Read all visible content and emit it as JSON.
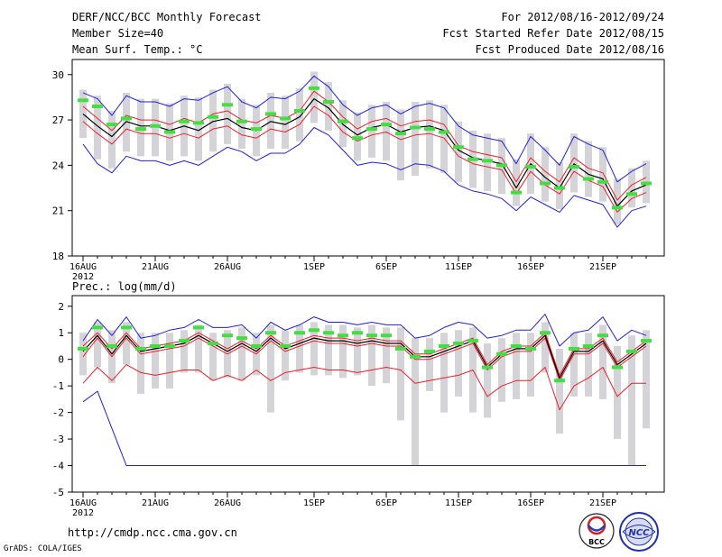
{
  "header": {
    "title": "DERF/NCC/BCC Monthly Forecast",
    "member_size": "Member Size=40",
    "variable_temp": "Mean Surf. Temp.: °C",
    "forecast_range": "For 2012/08/16-2012/09/24",
    "fcst_started": "Fcst Started Refer Date 2012/08/15",
    "fcst_produced": "Fcst Produced Date 2012/08/16"
  },
  "footer": {
    "url": "http://cmdp.ncc.cma.gov.cn",
    "credit": "GrADS: COLA/IGES",
    "logo_bcc": "BCC",
    "logo_ncc": "NCC"
  },
  "colors": {
    "mean_line": "#000000",
    "spread_line": "#e8202a",
    "extreme_line": "#2020d0",
    "observed_bar": "#44dd44",
    "member_range": "#d4d4d8"
  },
  "chart_data": [
    {
      "type": "line",
      "title": "Mean Surf. Temp.: °C",
      "xlabel": "",
      "ylabel": "°C",
      "ylim": [
        18,
        31
      ],
      "yticks": [
        18,
        21,
        24,
        27,
        30
      ],
      "xtick_labels": [
        "16AUG",
        "21AUG",
        "26AUG",
        "1SEP",
        "6SEP",
        "11SEP",
        "16SEP",
        "21SEP"
      ],
      "xtick_days": [
        1,
        6,
        11,
        17,
        22,
        27,
        32,
        37
      ],
      "year_label": "2012",
      "days": [
        1,
        2,
        3,
        4,
        5,
        6,
        7,
        8,
        9,
        10,
        11,
        12,
        13,
        14,
        15,
        16,
        17,
        18,
        19,
        20,
        21,
        22,
        23,
        24,
        25,
        26,
        27,
        28,
        29,
        30,
        31,
        32,
        33,
        34,
        35,
        36,
        37,
        38,
        39,
        40
      ],
      "series": [
        {
          "name": "ensemble-mean",
          "values": [
            27.4,
            26.6,
            25.9,
            26.9,
            26.6,
            26.6,
            26.3,
            26.6,
            26.3,
            26.9,
            27.1,
            26.5,
            26.3,
            26.9,
            26.7,
            27.2,
            28.4,
            27.8,
            26.7,
            26.0,
            26.5,
            26.7,
            26.2,
            26.5,
            26.6,
            26.3,
            25.0,
            24.5,
            24.3,
            24.1,
            22.5,
            24.1,
            23.2,
            22.5,
            24.1,
            23.4,
            23.1,
            21.3,
            22.3,
            22.7
          ]
        },
        {
          "name": "spread-upper",
          "values": [
            27.9,
            27.1,
            26.3,
            27.3,
            27.0,
            27.0,
            26.7,
            27.1,
            26.8,
            27.4,
            27.6,
            27.0,
            26.8,
            27.3,
            27.1,
            27.6,
            28.9,
            28.2,
            27.2,
            26.4,
            26.9,
            27.1,
            26.6,
            26.9,
            27.0,
            26.7,
            25.3,
            24.9,
            24.7,
            24.5,
            22.9,
            24.5,
            23.6,
            22.9,
            24.5,
            23.8,
            23.5,
            21.7,
            22.7,
            23.2
          ]
        },
        {
          "name": "spread-lower",
          "values": [
            26.9,
            26.1,
            25.4,
            26.4,
            26.1,
            26.1,
            25.8,
            26.1,
            25.8,
            26.4,
            26.6,
            26.0,
            25.8,
            26.4,
            26.2,
            26.7,
            27.9,
            27.3,
            26.2,
            25.6,
            26.0,
            26.2,
            25.7,
            26.0,
            26.1,
            25.8,
            24.6,
            24.1,
            23.9,
            23.7,
            22.1,
            23.6,
            22.7,
            22.1,
            23.6,
            23.0,
            22.6,
            20.9,
            21.8,
            22.2
          ]
        },
        {
          "name": "member-max",
          "values": [
            28.8,
            28.4,
            27.3,
            28.6,
            28.2,
            28.2,
            27.9,
            28.4,
            28.3,
            28.8,
            29.2,
            28.2,
            27.8,
            28.5,
            28.4,
            28.9,
            29.9,
            29.2,
            28.0,
            27.3,
            27.8,
            28.0,
            27.4,
            27.9,
            28.1,
            27.8,
            26.6,
            26.0,
            25.8,
            25.6,
            24.1,
            25.9,
            25.0,
            24.0,
            25.9,
            25.4,
            25.0,
            22.9,
            23.6,
            24.1
          ]
        },
        {
          "name": "member-min",
          "values": [
            25.4,
            24.1,
            23.5,
            24.6,
            24.3,
            24.3,
            24.0,
            24.3,
            24.0,
            24.6,
            25.2,
            24.9,
            24.3,
            24.8,
            24.8,
            25.4,
            26.5,
            26.0,
            25.0,
            24.0,
            24.2,
            24.1,
            23.7,
            24.1,
            24.0,
            23.6,
            22.7,
            22.3,
            22.1,
            21.8,
            21.0,
            21.9,
            21.4,
            20.9,
            22.0,
            21.7,
            21.4,
            19.9,
            21.0,
            21.3
          ]
        },
        {
          "name": "observed",
          "values": [
            28.3,
            27.9,
            26.7,
            27.1,
            26.4,
            26.6,
            26.2,
            26.9,
            26.8,
            27.2,
            28.0,
            26.9,
            26.4,
            27.4,
            27.1,
            27.6,
            29.1,
            28.2,
            26.9,
            25.8,
            26.4,
            26.7,
            26.1,
            26.5,
            26.4,
            26.2,
            25.2,
            24.4,
            24.3,
            24.0,
            22.2,
            23.9,
            22.8,
            22.5,
            23.9,
            23.1,
            22.9,
            21.2,
            22.1,
            22.8
          ]
        },
        {
          "name": "range-high",
          "values": [
            29.0,
            28.6,
            27.6,
            28.8,
            28.4,
            28.4,
            28.1,
            28.6,
            28.5,
            29.0,
            29.4,
            28.4,
            28.0,
            28.8,
            28.6,
            29.1,
            30.2,
            29.5,
            28.3,
            27.5,
            28.0,
            28.2,
            27.7,
            28.2,
            28.3,
            28.0,
            26.9,
            26.3,
            26.1,
            25.8,
            24.4,
            26.1,
            25.2,
            24.2,
            26.1,
            25.6,
            25.2,
            23.1,
            23.8,
            24.3
          ]
        },
        {
          "name": "range-low",
          "values": [
            25.8,
            24.4,
            23.8,
            24.9,
            24.6,
            24.6,
            24.3,
            24.6,
            24.3,
            24.9,
            25.4,
            25.1,
            24.6,
            25.1,
            25.1,
            25.6,
            26.8,
            26.3,
            25.2,
            24.3,
            24.5,
            24.3,
            23.0,
            23.3,
            23.8,
            23.5,
            22.9,
            22.5,
            22.3,
            22.1,
            21.3,
            22.1,
            21.6,
            21.1,
            22.2,
            21.9,
            21.6,
            20.1,
            21.2,
            21.5
          ]
        }
      ]
    },
    {
      "type": "line",
      "title": "Prec.: log(mm/d)",
      "xlabel": "",
      "ylabel": "log(mm/d)",
      "ylim": [
        -5,
        2.4
      ],
      "yticks": [
        -5,
        -4,
        -3,
        -2,
        -1,
        0,
        1,
        2
      ],
      "xtick_labels": [
        "16AUG",
        "21AUG",
        "26AUG",
        "1SEP",
        "6SEP",
        "11SEP",
        "16SEP",
        "21SEP"
      ],
      "xtick_days": [
        1,
        6,
        11,
        17,
        22,
        27,
        32,
        37
      ],
      "year_label": "2012",
      "days": [
        1,
        2,
        3,
        4,
        5,
        6,
        7,
        8,
        9,
        10,
        11,
        12,
        13,
        14,
        15,
        16,
        17,
        18,
        19,
        20,
        21,
        22,
        23,
        24,
        25,
        26,
        27,
        28,
        29,
        30,
        31,
        32,
        33,
        34,
        35,
        36,
        37,
        38,
        39,
        40
      ],
      "series": [
        {
          "name": "ensemble-mean",
          "values": [
            0.3,
            0.9,
            0.2,
            0.9,
            0.3,
            0.4,
            0.5,
            0.6,
            0.9,
            0.6,
            0.3,
            0.6,
            0.3,
            0.8,
            0.4,
            0.6,
            0.8,
            0.7,
            0.7,
            0.6,
            0.7,
            0.6,
            0.6,
            0.1,
            0.1,
            0.3,
            0.5,
            0.7,
            -0.3,
            0.2,
            0.4,
            0.4,
            0.9,
            -0.7,
            0.3,
            0.3,
            0.7,
            -0.2,
            0.2,
            0.6
          ]
        },
        {
          "name": "spread-upper",
          "values": [
            0.5,
            1.0,
            0.4,
            1.0,
            0.4,
            0.5,
            0.6,
            0.7,
            1.0,
            0.7,
            0.4,
            0.7,
            0.4,
            0.9,
            0.5,
            0.7,
            0.9,
            0.8,
            0.8,
            0.7,
            0.8,
            0.7,
            0.7,
            0.2,
            0.2,
            0.4,
            0.6,
            0.8,
            -0.2,
            0.3,
            0.5,
            0.5,
            1.0,
            -0.6,
            0.4,
            0.4,
            0.8,
            -0.1,
            0.3,
            0.7
          ]
        },
        {
          "name": "spread-lower",
          "values": [
            0.1,
            0.8,
            0.1,
            0.8,
            0.2,
            0.3,
            0.4,
            0.5,
            0.8,
            0.5,
            0.2,
            0.5,
            0.2,
            0.7,
            0.3,
            0.5,
            0.7,
            0.6,
            0.6,
            0.5,
            0.6,
            0.5,
            0.5,
            0.0,
            0.0,
            0.2,
            0.4,
            0.6,
            -0.4,
            0.1,
            0.3,
            0.3,
            0.8,
            -0.8,
            0.2,
            0.2,
            0.6,
            -0.3,
            0.1,
            0.5
          ]
        },
        {
          "name": "member-max",
          "values": [
            0.7,
            1.5,
            0.9,
            1.6,
            0.8,
            0.9,
            1.1,
            1.2,
            1.5,
            1.2,
            1.2,
            1.3,
            0.8,
            1.4,
            1.1,
            1.3,
            1.6,
            1.4,
            1.4,
            1.3,
            1.4,
            1.3,
            1.3,
            0.8,
            0.9,
            1.2,
            1.4,
            1.3,
            0.8,
            0.9,
            1.1,
            1.1,
            1.7,
            0.5,
            1.0,
            1.1,
            1.6,
            0.7,
            1.1,
            0.9
          ]
        },
        {
          "name": "member-min",
          "values": [
            -1.6,
            -1.2,
            -2.6,
            -4.0,
            -4.0,
            -4.0,
            -4.0,
            -4.0,
            -4.0,
            -4.0,
            -4.0,
            -4.0,
            -4.0,
            -4.0,
            -4.0,
            -4.0,
            -4.0,
            -4.0,
            -4.0,
            -4.0,
            -4.0,
            -4.0,
            -4.0,
            -4.0,
            -4.0,
            -4.0,
            -4.0,
            -4.0,
            -4.0,
            -4.0,
            -4.0,
            -4.0,
            -4.0,
            -4.0,
            -4.0,
            -4.0,
            -4.0,
            -4.0,
            -4.0,
            -4.0
          ]
        },
        {
          "name": "lower-envelope",
          "values": [
            -0.9,
            -0.3,
            -0.8,
            -0.2,
            -0.5,
            -0.6,
            -0.5,
            -0.4,
            -0.4,
            -0.8,
            -0.6,
            -0.8,
            -0.4,
            -0.8,
            -0.5,
            -0.4,
            -0.3,
            -0.4,
            -0.4,
            -0.5,
            -0.4,
            -0.3,
            -0.4,
            -0.9,
            -0.8,
            -0.7,
            -0.6,
            -0.4,
            -1.4,
            -1.0,
            -0.8,
            -0.8,
            -0.3,
            -1.9,
            -1.0,
            -0.7,
            -0.3,
            -1.4,
            -0.9,
            -0.9
          ]
        },
        {
          "name": "observed",
          "values": [
            0.4,
            1.2,
            0.5,
            1.2,
            0.4,
            0.5,
            0.5,
            0.7,
            1.2,
            0.6,
            0.9,
            0.8,
            0.5,
            1.0,
            0.5,
            1.0,
            1.1,
            1.0,
            0.9,
            1.0,
            0.9,
            0.9,
            0.4,
            0.1,
            0.3,
            0.5,
            0.6,
            0.7,
            -0.3,
            0.2,
            0.5,
            0.4,
            1.0,
            -0.8,
            0.4,
            0.5,
            0.9,
            -0.3,
            0.3,
            0.7
          ]
        },
        {
          "name": "range-high",
          "values": [
            1.0,
            1.4,
            1.1,
            1.4,
            1.0,
            1.0,
            1.0,
            1.1,
            1.3,
            1.0,
            1.1,
            1.2,
            1.0,
            1.3,
            1.1,
            1.3,
            1.4,
            1.3,
            1.3,
            1.2,
            1.3,
            1.2,
            1.2,
            0.8,
            0.8,
            1.0,
            1.1,
            1.2,
            0.6,
            0.8,
            1.0,
            1.0,
            1.4,
            0.4,
            1.0,
            1.0,
            1.3,
            0.5,
            0.9,
            1.1
          ]
        },
        {
          "name": "range-low",
          "values": [
            -0.6,
            -0.3,
            -0.9,
            -0.2,
            -1.3,
            -1.1,
            -1.1,
            -0.5,
            -0.5,
            -0.8,
            -0.7,
            -0.8,
            -0.6,
            -2.0,
            -0.8,
            -0.5,
            -0.6,
            -0.6,
            -0.7,
            -0.6,
            -1.0,
            -0.9,
            -2.3,
            -4.0,
            -1.2,
            -2.0,
            -1.4,
            -2.0,
            -2.2,
            -1.6,
            -1.5,
            -1.4,
            -0.5,
            -2.8,
            -1.4,
            -1.4,
            -1.5,
            -3.0,
            -4.0,
            -2.6
          ]
        }
      ]
    }
  ]
}
